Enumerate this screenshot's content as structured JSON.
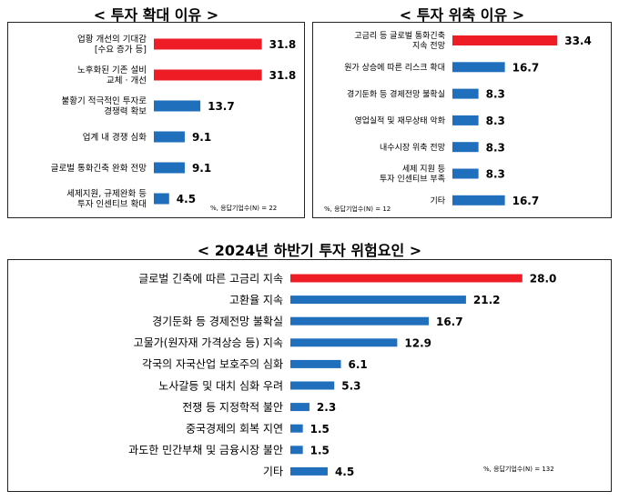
{
  "colors": {
    "highlight": "#ee1c24",
    "bar": "#1f6fbd",
    "border": "#222222"
  },
  "chart_data": [
    {
      "type": "bar",
      "orientation": "horizontal",
      "title": "< 투자 확대 이유 >",
      "categories": [
        [
          "업황 개선의 기대감",
          "[수요 증가 등]"
        ],
        [
          "노후화된 기존 설비",
          "교체 · 개선"
        ],
        [
          "불황기 적극적인 투자로",
          "경쟁력 확보"
        ],
        [
          "업계 내 경쟁 심화"
        ],
        [
          "글로벌 통화긴축 완화 전망"
        ],
        [
          "세제지원, 규제완화 등",
          "투자 인센티브 확대"
        ]
      ],
      "values": [
        31.8,
        31.8,
        13.7,
        9.1,
        9.1,
        4.5
      ],
      "value_labels": [
        "31.8",
        "31.8",
        "13.7",
        "9.1",
        "9.1",
        "4.5"
      ],
      "highlight": [
        0,
        1
      ],
      "note": "%, 응답기업수(N) = 22"
    },
    {
      "type": "bar",
      "orientation": "horizontal",
      "title": "< 투자 위축 이유 >",
      "categories": [
        [
          "고금리 등 글로벌 통화긴축",
          "지속 전망"
        ],
        [
          "원가 상승에 따른 리스크 확대"
        ],
        [
          "경기둔화 등 경제전망 불확실"
        ],
        [
          "영업실적 및 재무상태 악화"
        ],
        [
          "내수시장 위축 전망"
        ],
        [
          "세제 지원 등",
          "투자 인센티브 부족"
        ],
        [
          "기타"
        ]
      ],
      "values": [
        33.4,
        16.7,
        8.3,
        8.3,
        8.3,
        8.3,
        16.7
      ],
      "value_labels": [
        "33.4",
        "16.7",
        "8.3",
        "8.3",
        "8.3",
        "8.3",
        "16.7"
      ],
      "highlight": [
        0
      ],
      "note": "%, 응답기업수(N) = 12"
    },
    {
      "type": "bar",
      "orientation": "horizontal",
      "title": "< 2024년 하반기 투자 위험요인 >",
      "categories": [
        [
          "글로벌 긴축에 따른 고금리 지속"
        ],
        [
          "고환율 지속"
        ],
        [
          "경기둔화 등 경제전망 불확실"
        ],
        [
          "고물가(원자재 가격상승 등) 지속"
        ],
        [
          "각국의 자국산업 보호주의 심화"
        ],
        [
          "노사갈등 및 대치 심화 우려"
        ],
        [
          "전쟁 등 지정학적 불안"
        ],
        [
          "중국경제의 회복 지연"
        ],
        [
          "과도한 민간부채 및 금융시장 불안"
        ],
        [
          "기타"
        ]
      ],
      "values": [
        28.0,
        21.2,
        16.7,
        12.9,
        6.1,
        5.3,
        2.3,
        1.5,
        1.5,
        4.5
      ],
      "value_labels": [
        "28.0",
        "21.2",
        "16.7",
        "12.9",
        "6.1",
        "5.3",
        "2.3",
        "1.5",
        "1.5",
        "4.5"
      ],
      "highlight": [
        0
      ],
      "note": "%, 응답기업수(N) = 132"
    }
  ]
}
